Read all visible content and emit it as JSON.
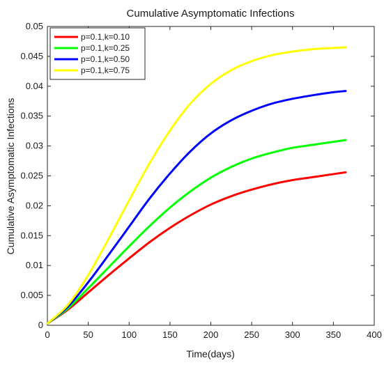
{
  "chart_data": {
    "type": "line",
    "title": "Cumulative Asymptomatic Infections",
    "xlabel": "Time(days)",
    "ylabel": "Cumulative Asymptomatic Infections",
    "xlim": [
      0,
      400
    ],
    "ylim": [
      0,
      0.05
    ],
    "xticks": [
      0,
      50,
      100,
      150,
      200,
      250,
      300,
      350,
      400
    ],
    "xtick_labels": [
      "0",
      "50",
      "100",
      "150",
      "200",
      "250",
      "300",
      "350",
      "400"
    ],
    "yticks": [
      0,
      0.005,
      0.01,
      0.015,
      0.02,
      0.025,
      0.03,
      0.035,
      0.04,
      0.045,
      0.05
    ],
    "ytick_labels": [
      "0",
      "0.005",
      "0.01",
      "0.015",
      "0.02",
      "0.025",
      "0.03",
      "0.035",
      "0.04",
      "0.045",
      "0.05"
    ],
    "grid": false,
    "legend_position": "top-left",
    "x": [
      0,
      25,
      50,
      75,
      100,
      125,
      150,
      175,
      200,
      225,
      250,
      275,
      300,
      325,
      350,
      365
    ],
    "series": [
      {
        "name": "p=0.1,k=0.10",
        "color": "#ff0000",
        "values": [
          0.0003,
          0.0026,
          0.0055,
          0.0084,
          0.0112,
          0.0139,
          0.0163,
          0.0184,
          0.0202,
          0.0216,
          0.0227,
          0.0236,
          0.0243,
          0.0248,
          0.0253,
          0.0256
        ]
      },
      {
        "name": "p=0.1,k=0.25",
        "color": "#00ff00",
        "values": [
          0.0003,
          0.0028,
          0.0062,
          0.0097,
          0.0132,
          0.0166,
          0.0197,
          0.0224,
          0.0247,
          0.0265,
          0.0279,
          0.0289,
          0.0297,
          0.0302,
          0.0307,
          0.031
        ]
      },
      {
        "name": "p=0.1,k=0.50",
        "color": "#0000ff",
        "values": [
          0.0003,
          0.0031,
          0.0072,
          0.0118,
          0.0165,
          0.0212,
          0.0254,
          0.0291,
          0.0321,
          0.0343,
          0.0359,
          0.0371,
          0.0379,
          0.0385,
          0.039,
          0.0392
        ]
      },
      {
        "name": "p=0.1,k=0.75",
        "color": "#ffff00",
        "values": [
          0.0003,
          0.0034,
          0.0084,
          0.0145,
          0.0209,
          0.0271,
          0.0326,
          0.0371,
          0.0404,
          0.0427,
          0.0442,
          0.0452,
          0.0458,
          0.0462,
          0.0464,
          0.0465
        ]
      }
    ]
  }
}
